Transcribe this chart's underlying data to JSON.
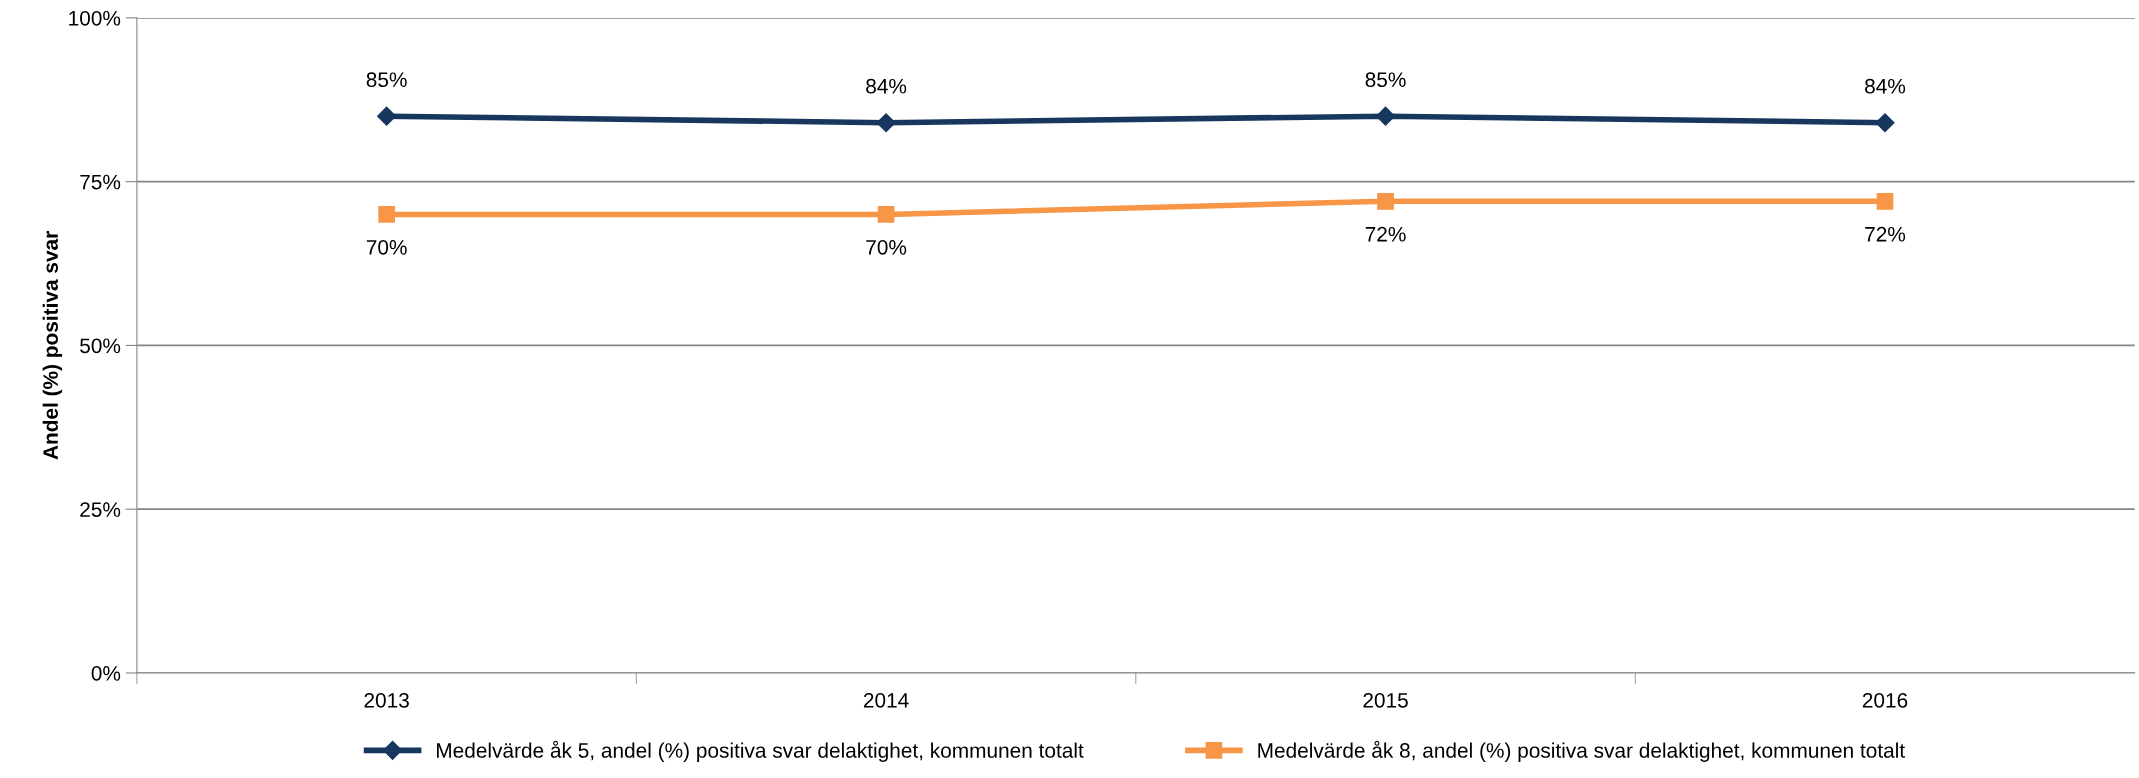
{
  "chart_data": {
    "type": "line",
    "ylabel": "Andel (%) positiva svar",
    "categories": [
      "2013",
      "2014",
      "2015",
      "2016"
    ],
    "series": [
      {
        "name": "Medelvärde åk 5, andel (%) positiva svar delaktighet, kommunen totalt",
        "color": "#17375e",
        "values": [
          85,
          84,
          85,
          84
        ],
        "value_labels": [
          "85%",
          "84%",
          "85%",
          "84%"
        ],
        "marker": "diamond"
      },
      {
        "name": "Medelvärde åk 8, andel (%) positiva svar delaktighet, kommunen totalt",
        "color": "#f79646",
        "values": [
          70,
          70,
          72,
          72
        ],
        "value_labels": [
          "70%",
          "70%",
          "72%",
          "72%"
        ],
        "marker": "square"
      }
    ],
    "ylim": [
      0,
      100
    ],
    "yticks": [
      {
        "value": 0,
        "label": "0%"
      },
      {
        "value": 25,
        "label": "25%"
      },
      {
        "value": 50,
        "label": "50%"
      },
      {
        "value": 75,
        "label": "75%"
      },
      {
        "value": 100,
        "label": "100%"
      }
    ],
    "grid": "y",
    "legend": "bottom",
    "line_style": "solid"
  }
}
